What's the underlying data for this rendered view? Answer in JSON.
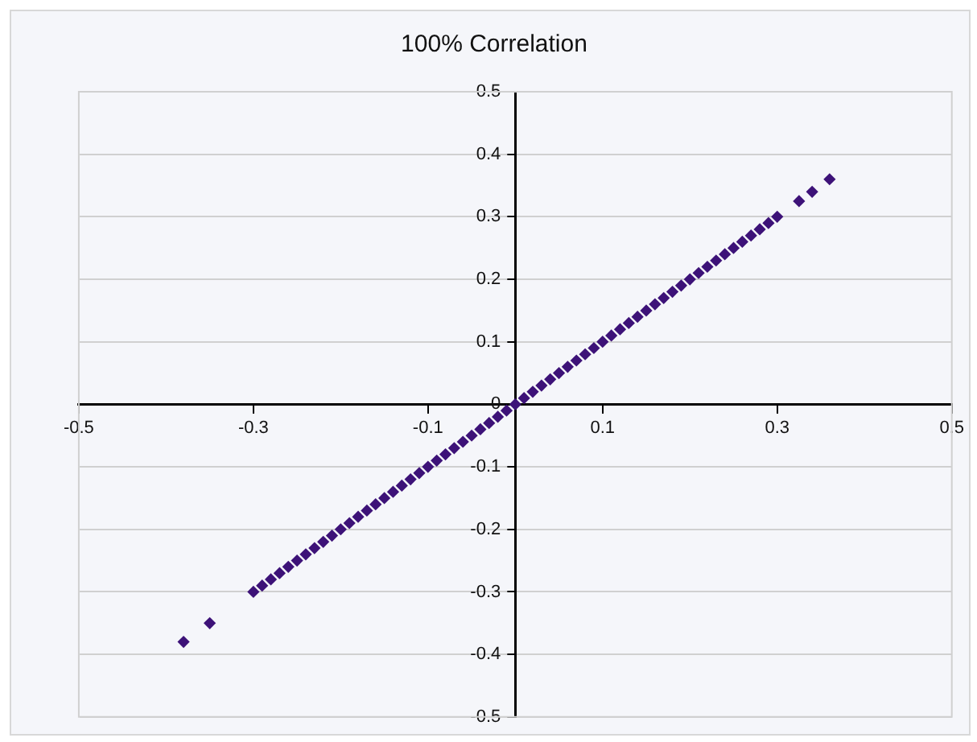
{
  "chart_data": {
    "type": "scatter",
    "title": "100% Correlation",
    "x": [
      -0.38,
      -0.35,
      -0.3,
      -0.29,
      -0.28,
      -0.27,
      -0.26,
      -0.25,
      -0.24,
      -0.23,
      -0.22,
      -0.21,
      -0.2,
      -0.19,
      -0.18,
      -0.17,
      -0.16,
      -0.15,
      -0.14,
      -0.13,
      -0.12,
      -0.11,
      -0.1,
      -0.09,
      -0.08,
      -0.07,
      -0.06,
      -0.05,
      -0.04,
      -0.03,
      -0.02,
      -0.01,
      0,
      0.01,
      0.02,
      0.03,
      0.04,
      0.05,
      0.06,
      0.07,
      0.08,
      0.09,
      0.1,
      0.11,
      0.12,
      0.13,
      0.14,
      0.15,
      0.16,
      0.17,
      0.18,
      0.19,
      0.2,
      0.21,
      0.22,
      0.23,
      0.24,
      0.25,
      0.26,
      0.27,
      0.28,
      0.29,
      0.3,
      0.325,
      0.34,
      0.36
    ],
    "series": [
      {
        "color": "#3d1278",
        "values": [
          -0.38,
          -0.35,
          -0.3,
          -0.29,
          -0.28,
          -0.27,
          -0.26,
          -0.25,
          -0.24,
          -0.23,
          -0.22,
          -0.21,
          -0.2,
          -0.19,
          -0.18,
          -0.17,
          -0.16,
          -0.15,
          -0.14,
          -0.13,
          -0.12,
          -0.11,
          -0.1,
          -0.09,
          -0.08,
          -0.07,
          -0.06,
          -0.05,
          -0.04,
          -0.03,
          -0.02,
          -0.01,
          0,
          0.01,
          0.02,
          0.03,
          0.04,
          0.05,
          0.06,
          0.07,
          0.08,
          0.09,
          0.1,
          0.11,
          0.12,
          0.13,
          0.14,
          0.15,
          0.16,
          0.17,
          0.18,
          0.19,
          0.2,
          0.21,
          0.22,
          0.23,
          0.24,
          0.25,
          0.26,
          0.27,
          0.28,
          0.29,
          0.3,
          0.325,
          0.34,
          0.36
        ]
      }
    ],
    "xlim": [
      -0.5,
      0.5
    ],
    "xticks": [
      -0.5,
      -0.3,
      -0.1,
      0.1,
      0.3,
      0.5
    ],
    "ylim": [
      -0.5,
      0.5
    ],
    "yticks": [
      -0.5,
      -0.4,
      -0.3,
      -0.2,
      -0.1,
      0,
      0.1,
      0.2,
      0.3,
      0.4,
      0.5
    ],
    "grid": "y",
    "legend": false,
    "marker": "diamond"
  }
}
